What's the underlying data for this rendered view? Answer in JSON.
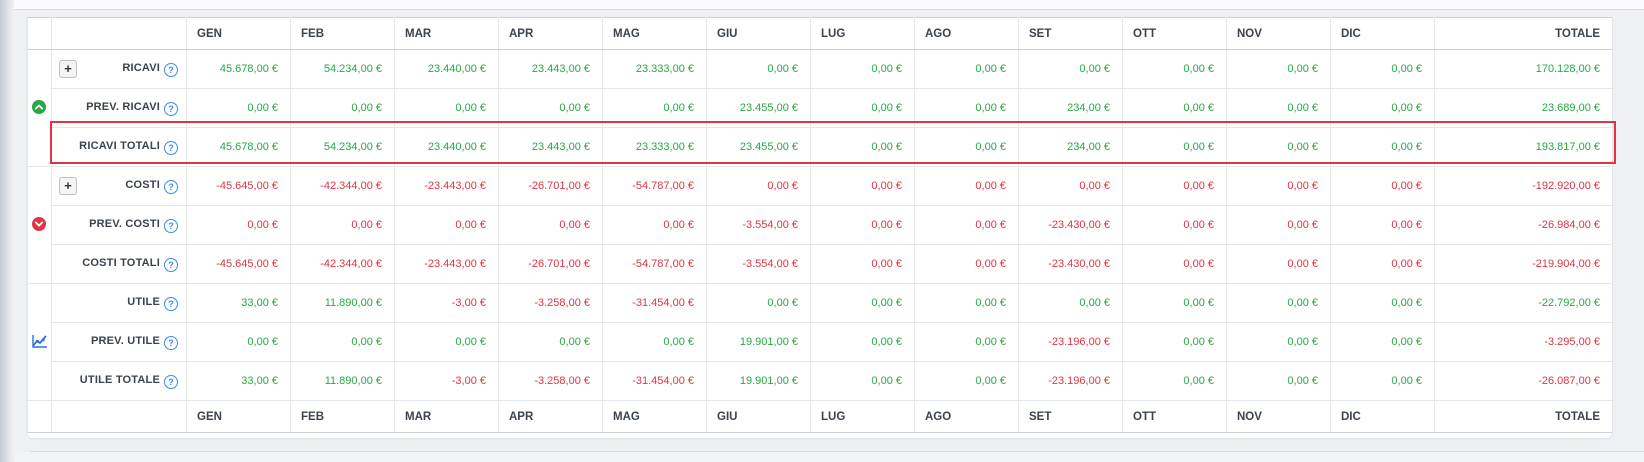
{
  "colors": {
    "green": "#28a745",
    "red": "#dc3545",
    "help_blue": "#3b8beb",
    "chart_blue": "#2b72d7",
    "highlight_red": "#e0353f"
  },
  "glyphs": {
    "expand": "+",
    "help": "?"
  },
  "table": {
    "months": [
      "GEN",
      "FEB",
      "MAR",
      "APR",
      "MAG",
      "GIU",
      "LUG",
      "AGO",
      "SET",
      "OTT",
      "NOV",
      "DIC"
    ],
    "total_label": "TOTALE",
    "groups": [
      {
        "icon": "caret-up-circle-icon",
        "icon_color": "#28a745",
        "rows": [
          {
            "label": "RICAVI",
            "plus": true,
            "highlight": false,
            "cells": [
              [
                "45.678,00 €",
                "green"
              ],
              [
                "54.234,00 €",
                "green"
              ],
              [
                "23.440,00 €",
                "green"
              ],
              [
                "23.443,00 €",
                "green"
              ],
              [
                "23.333,00 €",
                "green"
              ],
              [
                "0,00 €",
                "green"
              ],
              [
                "0,00 €",
                "green"
              ],
              [
                "0,00 €",
                "green"
              ],
              [
                "0,00 €",
                "green"
              ],
              [
                "0,00 €",
                "green"
              ],
              [
                "0,00 €",
                "green"
              ],
              [
                "0,00 €",
                "green"
              ],
              [
                "170.128,00 €",
                "green"
              ]
            ]
          },
          {
            "label": "PREV. RICAVI",
            "plus": false,
            "highlight": false,
            "cells": [
              [
                "0,00 €",
                "green"
              ],
              [
                "0,00 €",
                "green"
              ],
              [
                "0,00 €",
                "green"
              ],
              [
                "0,00 €",
                "green"
              ],
              [
                "0,00 €",
                "green"
              ],
              [
                "23.455,00 €",
                "green"
              ],
              [
                "0,00 €",
                "green"
              ],
              [
                "0,00 €",
                "green"
              ],
              [
                "234,00 €",
                "green"
              ],
              [
                "0,00 €",
                "green"
              ],
              [
                "0,00 €",
                "green"
              ],
              [
                "0,00 €",
                "green"
              ],
              [
                "23.689,00 €",
                "green"
              ]
            ]
          },
          {
            "label": "RICAVI TOTALI",
            "plus": false,
            "highlight": true,
            "cells": [
              [
                "45.678,00 €",
                "green"
              ],
              [
                "54.234,00 €",
                "green"
              ],
              [
                "23.440,00 €",
                "green"
              ],
              [
                "23.443,00 €",
                "green"
              ],
              [
                "23.333,00 €",
                "green"
              ],
              [
                "23.455,00 €",
                "green"
              ],
              [
                "0,00 €",
                "green"
              ],
              [
                "0,00 €",
                "green"
              ],
              [
                "234,00 €",
                "green"
              ],
              [
                "0,00 €",
                "green"
              ],
              [
                "0,00 €",
                "green"
              ],
              [
                "0,00 €",
                "green"
              ],
              [
                "193.817,00 €",
                "green"
              ]
            ]
          }
        ]
      },
      {
        "icon": "caret-down-circle-icon",
        "icon_color": "#dc3545",
        "rows": [
          {
            "label": "COSTI",
            "plus": true,
            "highlight": false,
            "cells": [
              [
                "-45.645,00 €",
                "red"
              ],
              [
                "-42.344,00 €",
                "red"
              ],
              [
                "-23.443,00 €",
                "red"
              ],
              [
                "-26.701,00 €",
                "red"
              ],
              [
                "-54.787,00 €",
                "red"
              ],
              [
                "0,00 €",
                "red"
              ],
              [
                "0,00 €",
                "red"
              ],
              [
                "0,00 €",
                "red"
              ],
              [
                "0,00 €",
                "red"
              ],
              [
                "0,00 €",
                "red"
              ],
              [
                "0,00 €",
                "red"
              ],
              [
                "0,00 €",
                "red"
              ],
              [
                "-192.920,00 €",
                "red"
              ]
            ]
          },
          {
            "label": "PREV. COSTI",
            "plus": false,
            "highlight": false,
            "cells": [
              [
                "0,00 €",
                "red"
              ],
              [
                "0,00 €",
                "red"
              ],
              [
                "0,00 €",
                "red"
              ],
              [
                "0,00 €",
                "red"
              ],
              [
                "0,00 €",
                "red"
              ],
              [
                "-3.554,00 €",
                "red"
              ],
              [
                "0,00 €",
                "red"
              ],
              [
                "0,00 €",
                "red"
              ],
              [
                "-23.430,00 €",
                "red"
              ],
              [
                "0,00 €",
                "red"
              ],
              [
                "0,00 €",
                "red"
              ],
              [
                "0,00 €",
                "red"
              ],
              [
                "-26.984,00 €",
                "red"
              ]
            ]
          },
          {
            "label": "COSTI TOTALI",
            "plus": false,
            "highlight": false,
            "cells": [
              [
                "-45.645,00 €",
                "red"
              ],
              [
                "-42.344,00 €",
                "red"
              ],
              [
                "-23.443,00 €",
                "red"
              ],
              [
                "-26.701,00 €",
                "red"
              ],
              [
                "-54.787,00 €",
                "red"
              ],
              [
                "-3.554,00 €",
                "red"
              ],
              [
                "0,00 €",
                "red"
              ],
              [
                "0,00 €",
                "red"
              ],
              [
                "-23.430,00 €",
                "red"
              ],
              [
                "0,00 €",
                "red"
              ],
              [
                "0,00 €",
                "red"
              ],
              [
                "0,00 €",
                "red"
              ],
              [
                "-219.904,00 €",
                "red"
              ]
            ]
          }
        ]
      },
      {
        "icon": "chart-line-icon",
        "icon_color": "#2b72d7",
        "rows": [
          {
            "label": "UTILE",
            "plus": false,
            "highlight": false,
            "cells": [
              [
                "33,00 €",
                "green"
              ],
              [
                "11.890,00 €",
                "green"
              ],
              [
                "-3,00 €",
                "red"
              ],
              [
                "-3.258,00 €",
                "red"
              ],
              [
                "-31.454,00 €",
                "red"
              ],
              [
                "0,00 €",
                "green"
              ],
              [
                "0,00 €",
                "green"
              ],
              [
                "0,00 €",
                "green"
              ],
              [
                "0,00 €",
                "green"
              ],
              [
                "0,00 €",
                "green"
              ],
              [
                "0,00 €",
                "green"
              ],
              [
                "0,00 €",
                "green"
              ],
              [
                "-22.792,00 €",
                "green"
              ]
            ]
          },
          {
            "label": "PREV. UTILE",
            "plus": false,
            "highlight": false,
            "cells": [
              [
                "0,00 €",
                "green"
              ],
              [
                "0,00 €",
                "green"
              ],
              [
                "0,00 €",
                "green"
              ],
              [
                "0,00 €",
                "green"
              ],
              [
                "0,00 €",
                "green"
              ],
              [
                "19.901,00 €",
                "green"
              ],
              [
                "0,00 €",
                "green"
              ],
              [
                "0,00 €",
                "green"
              ],
              [
                "-23.196,00 €",
                "red"
              ],
              [
                "0,00 €",
                "green"
              ],
              [
                "0,00 €",
                "green"
              ],
              [
                "0,00 €",
                "green"
              ],
              [
                "-3.295,00 €",
                "red"
              ]
            ]
          },
          {
            "label": "UTILE TOTALE",
            "plus": false,
            "highlight": false,
            "cells": [
              [
                "33,00 €",
                "green"
              ],
              [
                "11.890,00 €",
                "green"
              ],
              [
                "-3,00 €",
                "red"
              ],
              [
                "-3.258,00 €",
                "red"
              ],
              [
                "-31.454,00 €",
                "red"
              ],
              [
                "19.901,00 €",
                "green"
              ],
              [
                "0,00 €",
                "green"
              ],
              [
                "0,00 €",
                "green"
              ],
              [
                "-23.196,00 €",
                "red"
              ],
              [
                "0,00 €",
                "green"
              ],
              [
                "0,00 €",
                "green"
              ],
              [
                "0,00 €",
                "green"
              ],
              [
                "-26.087,00 €",
                "red"
              ]
            ]
          }
        ]
      }
    ]
  }
}
